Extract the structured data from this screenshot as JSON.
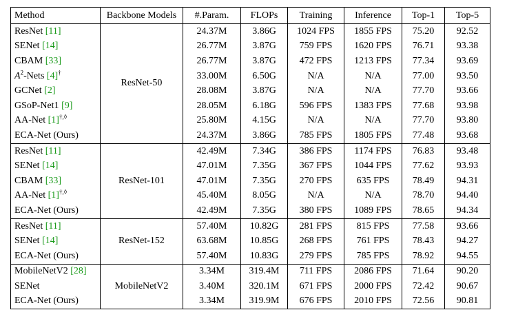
{
  "headers": {
    "method": "Method",
    "backbone": "Backbone Models",
    "params": "#.Param.",
    "flops": "FLOPs",
    "training": "Training",
    "inference": "Inference",
    "top1": "Top-1",
    "top5": "Top-5"
  },
  "groups": [
    {
      "backbone": "ResNet-50",
      "rows": [
        {
          "name": "ResNet ",
          "ref": "[11]",
          "sup": "",
          "params": "24.37M",
          "flops": "3.86G",
          "training": "1024 FPS",
          "inference": "1855 FPS",
          "top1": "75.20",
          "top5": "92.52",
          "bold": [
            "params",
            "flops",
            "training",
            "inference"
          ]
        },
        {
          "name": "SENet ",
          "ref": "[14]",
          "sup": "",
          "params": "26.77M",
          "flops": "3.87G",
          "training": "759 FPS",
          "inference": "1620 FPS",
          "top1": "76.71",
          "top5": "93.38",
          "bold": []
        },
        {
          "name": "CBAM ",
          "ref": "[33]",
          "sup": "",
          "params": "26.77M",
          "flops": "3.87G",
          "training": "472 FPS",
          "inference": "1213 FPS",
          "top1": "77.34",
          "top5": "93.69",
          "bold": []
        },
        {
          "name": "A2-Nets ",
          "a2": true,
          "ref": "[4]",
          "sup": "†",
          "params": "33.00M",
          "flops": "6.50G",
          "training": "N/A",
          "inference": "N/A",
          "top1": "77.00",
          "top5": "93.50",
          "bold": []
        },
        {
          "name": "GCNet ",
          "ref": "[2]",
          "sup": "",
          "params": "28.08M",
          "flops": "3.87G",
          "training": "N/A",
          "inference": "N/A",
          "top1": "77.70",
          "top5": "93.66",
          "bold": []
        },
        {
          "name": "GSoP-Net1 ",
          "ref": "[9]",
          "sup": "",
          "params": "28.05M",
          "flops": "6.18G",
          "training": "596 FPS",
          "inference": "1383 FPS",
          "top1": "77.68",
          "top5": "93.98",
          "bold": [
            "top5"
          ]
        },
        {
          "name": "AA-Net ",
          "ref": "[1]",
          "sup": "†,◊",
          "params": "25.80M",
          "flops": "4.15G",
          "training": "N/A",
          "inference": "N/A",
          "top1": "77.70",
          "top5": "93.80",
          "bold": [
            "top1"
          ]
        },
        {
          "name": "ECA-Net (Ours)",
          "ref": "",
          "sup": "",
          "params": "24.37M",
          "flops": "3.86G",
          "training": "785 FPS",
          "inference": "1805 FPS",
          "top1": "77.48",
          "top5": "93.68",
          "bold": [
            "params",
            "flops"
          ]
        }
      ]
    },
    {
      "backbone": "ResNet-101",
      "rows": [
        {
          "name": "ResNet ",
          "ref": "[11]",
          "sup": "",
          "params": "42.49M",
          "flops": "7.34G",
          "training": "386 FPS",
          "inference": "1174 FPS",
          "top1": "76.83",
          "top5": "93.48",
          "bold": [
            "params",
            "flops",
            "training",
            "inference"
          ]
        },
        {
          "name": "SENet ",
          "ref": "[14]",
          "sup": "",
          "params": "47.01M",
          "flops": "7.35G",
          "training": "367 FPS",
          "inference": "1044 FPS",
          "top1": "77.62",
          "top5": "93.93",
          "bold": []
        },
        {
          "name": "CBAM ",
          "ref": "[33]",
          "sup": "",
          "params": "47.01M",
          "flops": "7.35G",
          "training": "270 FPS",
          "inference": "635 FPS",
          "top1": "78.49",
          "top5": "94.31",
          "bold": []
        },
        {
          "name": "AA-Net ",
          "ref": "[1]",
          "sup": "†,◊",
          "params": "45.40M",
          "flops": "8.05G",
          "training": "N/A",
          "inference": "N/A",
          "top1": "78.70",
          "top5": "94.40",
          "bold": [
            "top1",
            "top5"
          ]
        },
        {
          "name": "ECA-Net (Ours)",
          "ref": "",
          "sup": "",
          "params": "42.49M",
          "flops": "7.35G",
          "training": "380 FPS",
          "inference": "1089 FPS",
          "top1": "78.65",
          "top5": "94.34",
          "bold": [
            "params"
          ]
        }
      ]
    },
    {
      "backbone": "ResNet-152",
      "rows": [
        {
          "name": "ResNet ",
          "ref": "[11]",
          "sup": "",
          "params": "57.40M",
          "flops": "10.82G",
          "training": "281 FPS",
          "inference": "815 FPS",
          "top1": "77.58",
          "top5": "93.66",
          "bold": [
            "params",
            "flops",
            "training",
            "inference"
          ]
        },
        {
          "name": "SENet ",
          "ref": "[14]",
          "sup": "",
          "params": "63.68M",
          "flops": "10.85G",
          "training": "268 FPS",
          "inference": "761 FPS",
          "top1": "78.43",
          "top5": "94.27",
          "bold": []
        },
        {
          "name": "ECA-Net (Ours)",
          "ref": "",
          "sup": "",
          "params": "57.40M",
          "flops": "10.83G",
          "training": "279 FPS",
          "inference": "785 FPS",
          "top1": "78.92",
          "top5": "94.55",
          "bold": [
            "params",
            "top1",
            "top5"
          ]
        }
      ]
    },
    {
      "backbone": "MobileNetV2",
      "rows": [
        {
          "name": "MobileNetV2 ",
          "ref": "[28]",
          "sup": "",
          "params": "3.34M",
          "flops": "319.4M",
          "training": "711 FPS",
          "inference": "2086 FPS",
          "top1": "71.64",
          "top5": "90.20",
          "bold": [
            "params",
            "flops",
            "training",
            "inference"
          ]
        },
        {
          "name": "SENet",
          "ref": "",
          "sup": "",
          "params": "3.40M",
          "flops": "320.1M",
          "training": "671 FPS",
          "inference": "2000 FPS",
          "top1": "72.42",
          "top5": "90.67",
          "bold": []
        },
        {
          "name": "ECA-Net (Ours)",
          "ref": "",
          "sup": "",
          "params": "3.34M",
          "flops": "319.9M",
          "training": "676 FPS",
          "inference": "2010 FPS",
          "top1": "72.56",
          "top5": "90.81",
          "bold": [
            "params",
            "top1",
            "top5"
          ]
        }
      ]
    }
  ]
}
